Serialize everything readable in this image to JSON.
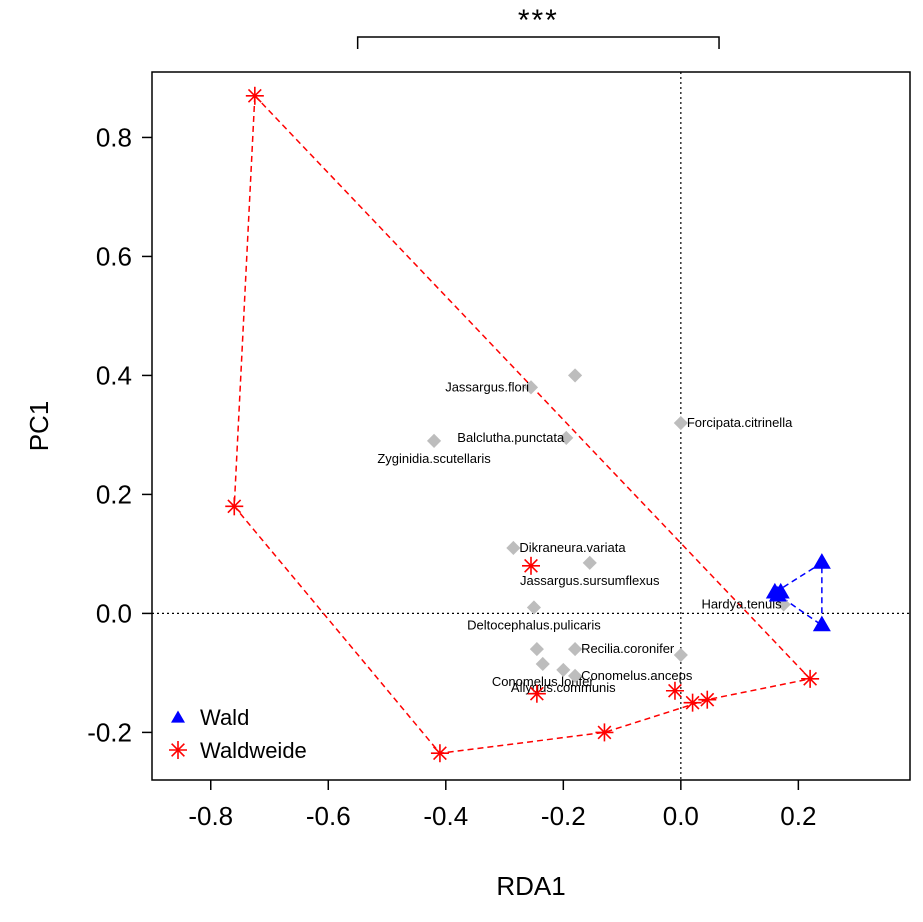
{
  "chart_data": {
    "type": "scatter",
    "xlabel": "RDA1",
    "ylabel": "PC1",
    "xlim": [
      -0.9,
      0.39
    ],
    "ylim": [
      -0.28,
      0.91
    ],
    "x_ticks": [
      -0.8,
      -0.6,
      -0.4,
      -0.2,
      0.0,
      0.2
    ],
    "x_tick_labels": [
      "-0.8",
      "-0.6",
      "-0.4",
      "-0.2",
      "0.0",
      "0.2"
    ],
    "y_ticks": [
      -0.2,
      0.0,
      0.2,
      0.4,
      0.6,
      0.8
    ],
    "y_tick_labels": [
      "-0.2",
      "0.0",
      "0.2",
      "0.4",
      "0.6",
      "0.8"
    ],
    "reference_lines": {
      "x": 0.0,
      "y": 0.0
    },
    "significance": {
      "label": "***",
      "x_from": -0.55,
      "x_to": 0.065
    },
    "legend_position": "bottom-left",
    "series": [
      {
        "name": "Wald",
        "marker": "triangle",
        "color": "#0000ff",
        "points": [
          [
            0.16,
            0.035
          ],
          [
            0.24,
            0.085
          ],
          [
            0.24,
            -0.02
          ],
          [
            0.165,
            0.03
          ],
          [
            0.17,
            0.035
          ]
        ],
        "hull": [
          [
            0.16,
            0.035
          ],
          [
            0.24,
            0.085
          ],
          [
            0.24,
            -0.02
          ]
        ]
      },
      {
        "name": "Waldweide",
        "marker": "asterisk",
        "color": "#ff0000",
        "points": [
          [
            -0.725,
            0.87
          ],
          [
            -0.76,
            0.18
          ],
          [
            -0.41,
            -0.235
          ],
          [
            -0.13,
            -0.2
          ],
          [
            -0.245,
            -0.135
          ],
          [
            -0.255,
            0.08
          ],
          [
            -0.01,
            -0.13
          ],
          [
            0.02,
            -0.15
          ],
          [
            0.045,
            -0.145
          ],
          [
            0.22,
            -0.11
          ]
        ],
        "hull": [
          [
            -0.725,
            0.87
          ],
          [
            0.22,
            -0.11
          ],
          [
            0.045,
            -0.145
          ],
          [
            -0.13,
            -0.2
          ],
          [
            -0.41,
            -0.235
          ],
          [
            -0.76,
            0.18
          ]
        ]
      }
    ],
    "species": [
      {
        "name": "Jassargus.flori",
        "x": -0.255,
        "y": 0.38,
        "anchor": "end"
      },
      {
        "name": "",
        "x": -0.18,
        "y": 0.4,
        "anchor": "end"
      },
      {
        "name": "Balclutha.punctata",
        "x": -0.195,
        "y": 0.295,
        "anchor": "end"
      },
      {
        "name": "Zyginidia.scutellaris",
        "x": -0.42,
        "y": 0.29,
        "anchor": "mid"
      },
      {
        "name": "Forcipata.citrinella",
        "x": 0.0,
        "y": 0.32,
        "anchor": "start"
      },
      {
        "name": "Dikraneura.variata",
        "x": -0.285,
        "y": 0.11,
        "anchor": "start"
      },
      {
        "name": "Jassargus.sursumflexus",
        "x": -0.155,
        "y": 0.085,
        "anchor": "mid"
      },
      {
        "name": "Deltocephalus.pulicaris",
        "x": -0.25,
        "y": 0.01,
        "anchor": "mid"
      },
      {
        "name": "Hardya.tenuis",
        "x": 0.175,
        "y": 0.015,
        "anchor": "end"
      },
      {
        "name": "Recilia.coronifer",
        "x": -0.18,
        "y": -0.06,
        "anchor": "start"
      },
      {
        "name": "",
        "x": -0.245,
        "y": -0.06,
        "anchor": "end"
      },
      {
        "name": "Conomelus.lorifer",
        "x": -0.235,
        "y": -0.085,
        "anchor": "mid"
      },
      {
        "name": "Allygus.communis",
        "x": -0.2,
        "y": -0.095,
        "anchor": "mid"
      },
      {
        "name": "Conomelus.anceps",
        "x": -0.18,
        "y": -0.105,
        "anchor": "start"
      },
      {
        "name": "",
        "x": 0.0,
        "y": -0.07,
        "anchor": "end"
      }
    ]
  }
}
